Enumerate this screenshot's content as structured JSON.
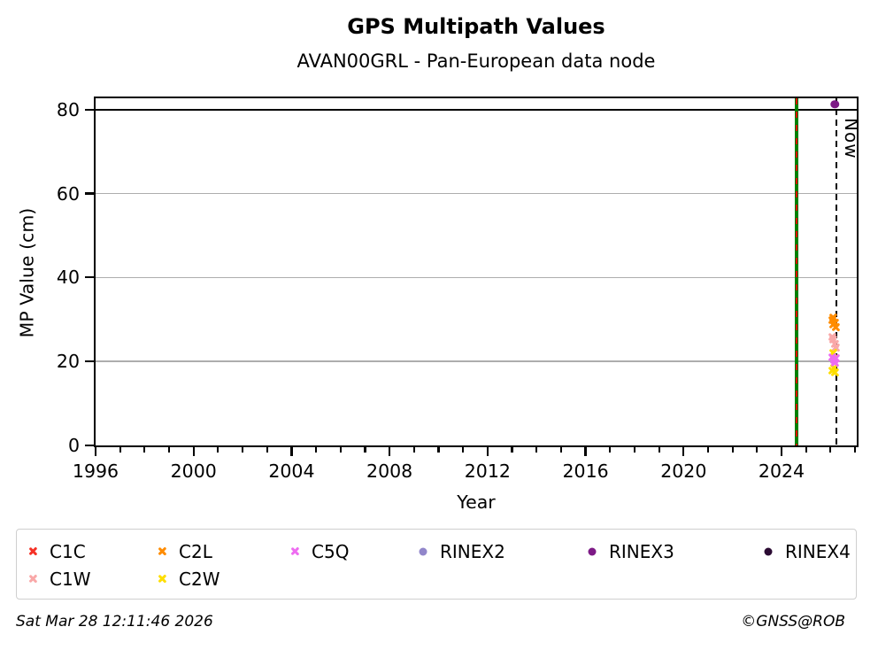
{
  "chart_data": {
    "type": "scatter",
    "title": "GPS Multipath Values",
    "subtitle": "AVAN00GRL - Pan-European data node",
    "xlabel": "Year",
    "ylabel": "MP Value (cm)",
    "xlim": [
      1996,
      2027.07
    ],
    "ylim": [
      0,
      82.7
    ],
    "x_major_ticks": [
      1996,
      2000,
      2004,
      2008,
      2012,
      2016,
      2020,
      2024
    ],
    "x_minor_tick_interval_years": 1,
    "y_ticks": [
      0,
      20,
      40,
      60,
      80
    ],
    "grid_y_values": [
      20,
      40,
      60
    ],
    "grid_color": "#adadad",
    "threshold_y": 80,
    "vlines": [
      {
        "x": 2024.62,
        "style": "green-red-dashed",
        "name": "event-line",
        "solid_color": "#008000",
        "dash_color": "#e00000"
      },
      {
        "x": 2026.24,
        "style": "black-dashed",
        "name": "now-line",
        "label": "Now",
        "dash_color": "#000000"
      }
    ],
    "series": [
      {
        "name": "C1C",
        "marker": "x",
        "color": "#f53126",
        "points": []
      },
      {
        "name": "C1W",
        "marker": "x",
        "color": "#f9a8a8",
        "points": [
          [
            2026.05,
            25.9
          ],
          [
            2026.1,
            25.1
          ],
          [
            2026.16,
            24.2
          ],
          [
            2026.2,
            23.3
          ]
        ]
      },
      {
        "name": "C2W",
        "marker": "x",
        "color": "#fede00",
        "points": [
          [
            2026.1,
            22.1
          ],
          [
            2026.06,
            17.9
          ],
          [
            2026.14,
            18.4
          ],
          [
            2026.19,
            17.3
          ]
        ]
      },
      {
        "name": "C5Q",
        "marker": "x",
        "color": "#ee6cf1",
        "points": [
          [
            2026.07,
            21.0
          ],
          [
            2026.13,
            20.3
          ],
          [
            2026.18,
            19.7
          ],
          [
            2026.21,
            20.8
          ]
        ]
      },
      {
        "name": "C2L",
        "marker": "x",
        "color": "#ff8c00",
        "points": [
          [
            2026.06,
            29.8
          ],
          [
            2026.12,
            30.4
          ],
          [
            2026.17,
            29.2
          ],
          [
            2026.21,
            28.2
          ],
          [
            2026.09,
            28.7
          ]
        ]
      },
      {
        "name": "RINEX2",
        "marker": "circle",
        "color": "#9186ca",
        "points": []
      },
      {
        "name": "RINEX3",
        "marker": "circle",
        "color": "#7d1a86",
        "points": [
          [
            2026.17,
            81.3
          ]
        ]
      },
      {
        "name": "RINEX4",
        "marker": "circle",
        "color": "#2b0b33",
        "points": []
      }
    ]
  },
  "legend": {
    "items": [
      {
        "label": "C1C",
        "marker": "x",
        "color": "#f53126"
      },
      {
        "label": "C2L",
        "marker": "x",
        "color": "#ff8c00"
      },
      {
        "label": "C5Q",
        "marker": "x",
        "color": "#ee6cf1"
      },
      {
        "label": "RINEX2",
        "marker": "circle",
        "color": "#9186ca"
      },
      {
        "label": "RINEX3",
        "marker": "circle",
        "color": "#7d1a86"
      },
      {
        "label": "RINEX4",
        "marker": "circle",
        "color": "#2b0b33"
      },
      {
        "label": "C1W",
        "marker": "x",
        "color": "#f9a8a8"
      },
      {
        "label": "C2W",
        "marker": "x",
        "color": "#fede00"
      }
    ]
  },
  "footer": {
    "timestamp": "Sat Mar 28 12:11:46 2026",
    "copyright": "©GNSS@ROB"
  }
}
